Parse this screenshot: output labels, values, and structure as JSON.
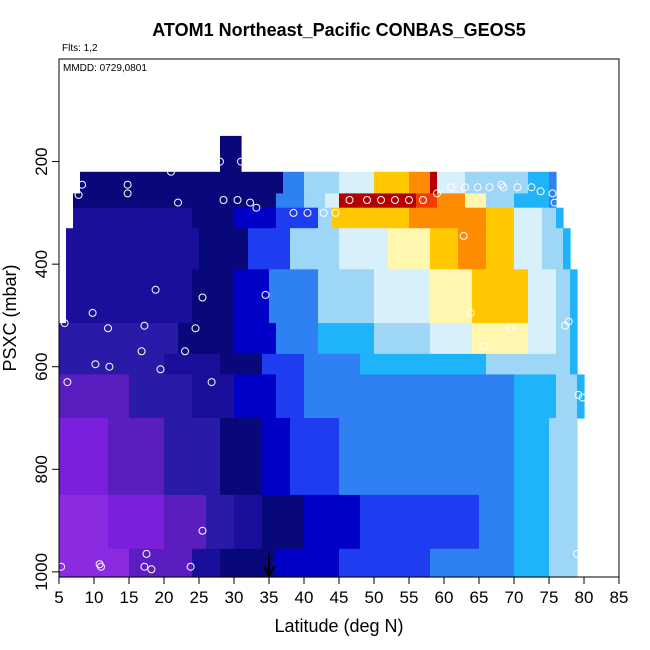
{
  "chart_data": {
    "type": "heatmap",
    "title": "ATOM1 Northeast_Pacific CONBAS_GEOS5",
    "flights_label": "Flts: 1,2",
    "mmdd_label": "MMDD: 0729,0801",
    "xlabel": "Latitude (deg N)",
    "ylabel": "PSXC (mbar)",
    "xlim": [
      5,
      85
    ],
    "ylim": [
      1010,
      0
    ],
    "xticks": [
      5,
      10,
      15,
      20,
      25,
      30,
      35,
      40,
      45,
      50,
      55,
      60,
      65,
      70,
      75,
      80,
      85
    ],
    "yticks": [
      200,
      400,
      600,
      800,
      1000
    ],
    "grid": false,
    "legend": "none",
    "marker": {
      "type": "arrow-down",
      "x": 35
    },
    "palette": [
      "#8a2be2",
      "#7a1fdc",
      "#5a1ec0",
      "#2a1aa8",
      "#1a0f9a",
      "#08087a",
      "#0000c8",
      "#1e3cf0",
      "#2f80f2",
      "#1fb3fa",
      "#9ed6f8",
      "#d8f0fa",
      "#fff7b0",
      "#ffc800",
      "#ff8c00",
      "#f03c00",
      "#b40000"
    ],
    "rows": [
      {
        "p": [
          150,
          220
        ],
        "segs": [
          [
            28,
            31,
            5
          ]
        ]
      },
      {
        "p": [
          220,
          262
        ],
        "segs": [
          [
            8,
            37,
            5
          ],
          [
            37,
            40,
            8
          ],
          [
            40,
            45,
            10
          ],
          [
            45,
            50,
            11
          ],
          [
            50,
            55,
            13
          ],
          [
            55,
            58,
            14
          ],
          [
            58,
            59,
            16
          ],
          [
            59,
            63,
            11
          ],
          [
            63,
            72,
            10
          ],
          [
            72,
            75,
            9
          ],
          [
            75,
            76,
            8
          ]
        ]
      },
      {
        "p": [
          262,
          290
        ],
        "segs": [
          [
            7,
            36,
            5
          ],
          [
            36,
            40,
            8
          ],
          [
            40,
            43,
            10
          ],
          [
            43,
            45,
            11
          ],
          [
            45,
            56,
            16
          ],
          [
            56,
            59,
            15
          ],
          [
            59,
            63,
            14
          ],
          [
            63,
            66,
            12
          ],
          [
            66,
            70,
            10
          ],
          [
            70,
            75,
            9
          ],
          [
            75,
            76,
            8
          ]
        ]
      },
      {
        "p": [
          290,
          330
        ],
        "segs": [
          [
            7,
            24,
            4
          ],
          [
            24,
            30,
            5
          ],
          [
            30,
            36,
            6
          ],
          [
            36,
            42,
            7
          ],
          [
            42,
            44,
            10
          ],
          [
            44,
            48,
            13
          ],
          [
            48,
            55,
            13
          ],
          [
            55,
            60,
            14
          ],
          [
            60,
            66,
            14
          ],
          [
            66,
            70,
            13
          ],
          [
            70,
            74,
            11
          ],
          [
            74,
            76,
            10
          ],
          [
            76,
            77,
            9
          ]
        ]
      },
      {
        "p": [
          330,
          410
        ],
        "segs": [
          [
            6,
            25,
            4
          ],
          [
            25,
            32,
            5
          ],
          [
            32,
            38,
            7
          ],
          [
            38,
            45,
            10
          ],
          [
            45,
            52,
            11
          ],
          [
            52,
            58,
            12
          ],
          [
            58,
            62,
            13
          ],
          [
            62,
            66,
            14
          ],
          [
            66,
            70,
            13
          ],
          [
            70,
            74,
            11
          ],
          [
            74,
            77,
            10
          ],
          [
            77,
            78,
            9
          ]
        ]
      },
      {
        "p": [
          410,
          515
        ],
        "segs": [
          [
            6,
            24,
            4
          ],
          [
            24,
            30,
            5
          ],
          [
            30,
            35,
            6
          ],
          [
            35,
            42,
            8
          ],
          [
            42,
            50,
            10
          ],
          [
            50,
            58,
            11
          ],
          [
            58,
            64,
            12
          ],
          [
            64,
            68,
            13
          ],
          [
            68,
            72,
            13
          ],
          [
            72,
            76,
            11
          ],
          [
            76,
            78,
            10
          ],
          [
            78,
            79,
            9
          ]
        ]
      },
      {
        "p": [
          515,
          575
        ],
        "segs": [
          [
            5,
            22,
            3
          ],
          [
            22,
            30,
            5
          ],
          [
            30,
            36,
            6
          ],
          [
            36,
            42,
            8
          ],
          [
            42,
            50,
            9
          ],
          [
            50,
            58,
            10
          ],
          [
            58,
            64,
            11
          ],
          [
            64,
            68,
            12
          ],
          [
            68,
            72,
            12
          ],
          [
            72,
            76,
            11
          ],
          [
            76,
            78,
            10
          ],
          [
            78,
            79,
            9
          ]
        ]
      },
      {
        "p": [
          575,
          615
        ],
        "segs": [
          [
            5,
            20,
            3
          ],
          [
            20,
            28,
            4
          ],
          [
            28,
            34,
            5
          ],
          [
            34,
            40,
            7
          ],
          [
            40,
            48,
            8
          ],
          [
            48,
            58,
            9
          ],
          [
            58,
            66,
            9
          ],
          [
            66,
            72,
            10
          ],
          [
            72,
            78,
            10
          ],
          [
            78,
            79,
            9
          ]
        ]
      },
      {
        "p": [
          615,
          700
        ],
        "segs": [
          [
            5,
            15,
            2
          ],
          [
            15,
            24,
            3
          ],
          [
            24,
            30,
            4
          ],
          [
            30,
            36,
            6
          ],
          [
            36,
            40,
            7
          ],
          [
            40,
            50,
            8
          ],
          [
            50,
            70,
            8
          ],
          [
            70,
            76,
            9
          ],
          [
            76,
            79,
            10
          ],
          [
            79,
            80,
            9
          ]
        ]
      },
      {
        "p": [
          700,
          850
        ],
        "segs": [
          [
            5,
            12,
            1
          ],
          [
            12,
            20,
            2
          ],
          [
            20,
            28,
            3
          ],
          [
            28,
            34,
            5
          ],
          [
            34,
            38,
            6
          ],
          [
            38,
            45,
            7
          ],
          [
            45,
            70,
            8
          ],
          [
            70,
            75,
            9
          ],
          [
            75,
            79,
            10
          ]
        ]
      },
      {
        "p": [
          850,
          955
        ],
        "segs": [
          [
            5,
            12,
            0
          ],
          [
            12,
            20,
            1
          ],
          [
            20,
            26,
            2
          ],
          [
            26,
            30,
            3
          ],
          [
            30,
            34,
            4
          ],
          [
            34,
            40,
            5
          ],
          [
            40,
            48,
            6
          ],
          [
            48,
            65,
            7
          ],
          [
            65,
            70,
            8
          ],
          [
            70,
            75,
            9
          ],
          [
            75,
            79,
            10
          ]
        ]
      },
      {
        "p": [
          955,
          1010
        ],
        "segs": [
          [
            5,
            15,
            0
          ],
          [
            15,
            24,
            2
          ],
          [
            24,
            28,
            4
          ],
          [
            28,
            36,
            5
          ],
          [
            36,
            45,
            6
          ],
          [
            45,
            58,
            7
          ],
          [
            58,
            70,
            8
          ],
          [
            70,
            75,
            9
          ],
          [
            75,
            79,
            10
          ]
        ]
      }
    ],
    "points": [
      {
        "x": 8.3,
        "y": 245
      },
      {
        "x": 7.8,
        "y": 265
      },
      {
        "x": 14.8,
        "y": 245
      },
      {
        "x": 14.8,
        "y": 262
      },
      {
        "x": 21,
        "y": 220
      },
      {
        "x": 22,
        "y": 280
      },
      {
        "x": 28,
        "y": 200
      },
      {
        "x": 31,
        "y": 200
      },
      {
        "x": 28.5,
        "y": 275
      },
      {
        "x": 30.5,
        "y": 275
      },
      {
        "x": 32.3,
        "y": 280
      },
      {
        "x": 33.2,
        "y": 290
      },
      {
        "x": 38.5,
        "y": 300
      },
      {
        "x": 40.5,
        "y": 300
      },
      {
        "x": 42.8,
        "y": 300
      },
      {
        "x": 44.5,
        "y": 300
      },
      {
        "x": 46.5,
        "y": 275
      },
      {
        "x": 49,
        "y": 275
      },
      {
        "x": 51,
        "y": 275
      },
      {
        "x": 53,
        "y": 275
      },
      {
        "x": 55,
        "y": 275
      },
      {
        "x": 57,
        "y": 275
      },
      {
        "x": 59,
        "y": 262
      },
      {
        "x": 61,
        "y": 250
      },
      {
        "x": 63,
        "y": 250
      },
      {
        "x": 64.8,
        "y": 250
      },
      {
        "x": 66.5,
        "y": 250
      },
      {
        "x": 68.2,
        "y": 245
      },
      {
        "x": 68.5,
        "y": 250
      },
      {
        "x": 70.5,
        "y": 250
      },
      {
        "x": 72.5,
        "y": 250
      },
      {
        "x": 73.8,
        "y": 258
      },
      {
        "x": 75.5,
        "y": 262
      },
      {
        "x": 75.8,
        "y": 280
      },
      {
        "x": 62.8,
        "y": 345
      },
      {
        "x": 63.8,
        "y": 495
      },
      {
        "x": 65.8,
        "y": 560
      },
      {
        "x": 69.5,
        "y": 525
      },
      {
        "x": 77.3,
        "y": 520
      },
      {
        "x": 77.8,
        "y": 512
      },
      {
        "x": 79.2,
        "y": 655
      },
      {
        "x": 79.8,
        "y": 660
      },
      {
        "x": 79,
        "y": 965
      },
      {
        "x": 5.8,
        "y": 515
      },
      {
        "x": 6.2,
        "y": 630
      },
      {
        "x": 9.8,
        "y": 495
      },
      {
        "x": 10.2,
        "y": 595
      },
      {
        "x": 12,
        "y": 525
      },
      {
        "x": 12.2,
        "y": 600
      },
      {
        "x": 17.2,
        "y": 520
      },
      {
        "x": 16.8,
        "y": 570
      },
      {
        "x": 18.8,
        "y": 450
      },
      {
        "x": 19.5,
        "y": 605
      },
      {
        "x": 23,
        "y": 570
      },
      {
        "x": 24.5,
        "y": 525
      },
      {
        "x": 25.5,
        "y": 465
      },
      {
        "x": 26.8,
        "y": 630
      },
      {
        "x": 34.5,
        "y": 460
      },
      {
        "x": 25.5,
        "y": 920
      },
      {
        "x": 5.3,
        "y": 990
      },
      {
        "x": 10.8,
        "y": 985
      },
      {
        "x": 11,
        "y": 990
      },
      {
        "x": 17.5,
        "y": 965
      },
      {
        "x": 17.2,
        "y": 990
      },
      {
        "x": 18.2,
        "y": 995
      },
      {
        "x": 23.8,
        "y": 990
      }
    ]
  }
}
